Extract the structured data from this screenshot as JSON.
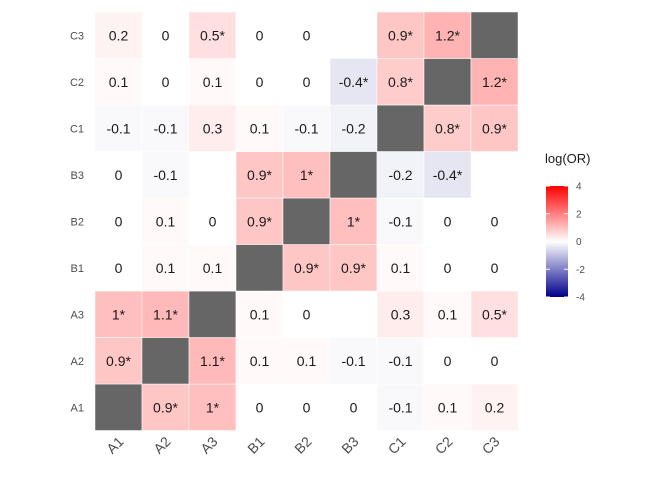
{
  "chart_data": {
    "type": "heatmap",
    "x_categories": [
      "A1",
      "A2",
      "A3",
      "B1",
      "B2",
      "B3",
      "C1",
      "C2",
      "C3"
    ],
    "y_categories": [
      "A1",
      "A2",
      "A3",
      "B1",
      "B2",
      "B3",
      "C1",
      "C2",
      "C3"
    ],
    "cells": [
      [
        "",
        "0.9*",
        "1*",
        "0",
        "0",
        "0",
        "-0.1",
        "0.1",
        "0.2"
      ],
      [
        "0.9*",
        "",
        "1.1*",
        "0.1",
        "0.1",
        "-0.1",
        "-0.1",
        "0",
        "0"
      ],
      [
        "1*",
        "1.1*",
        "",
        "0.1",
        "0",
        "",
        "0.3",
        "0.1",
        "0.5*"
      ],
      [
        "0",
        "0.1",
        "0.1",
        "",
        "0.9*",
        "0.9*",
        "0.1",
        "0",
        "0"
      ],
      [
        "0",
        "0.1",
        "0",
        "0.9*",
        "",
        "1*",
        "-0.1",
        "0",
        "0"
      ],
      [
        "0",
        "-0.1",
        "",
        "0.9*",
        "1*",
        "",
        "-0.2",
        "-0.4*",
        ""
      ],
      [
        "-0.1",
        "-0.1",
        "0.3",
        "0.1",
        "-0.1",
        "-0.2",
        "",
        "0.8*",
        "0.9*"
      ],
      [
        "0.1",
        "0",
        "0.1",
        "0",
        "0",
        "-0.4*",
        "0.8*",
        "",
        "1.2*"
      ],
      [
        "0.2",
        "0",
        "0.5*",
        "0",
        "0",
        "",
        "0.9*",
        "1.2*",
        ""
      ]
    ],
    "diagonal_color": "#666666",
    "legend": {
      "title": "log(OR)",
      "ticks": [
        "4",
        "2",
        "0",
        "-2",
        "-4"
      ],
      "range": [
        -4,
        4
      ],
      "colors": {
        "high": "#ff0000",
        "mid": "#ffffff",
        "low": "#00008b"
      }
    }
  }
}
